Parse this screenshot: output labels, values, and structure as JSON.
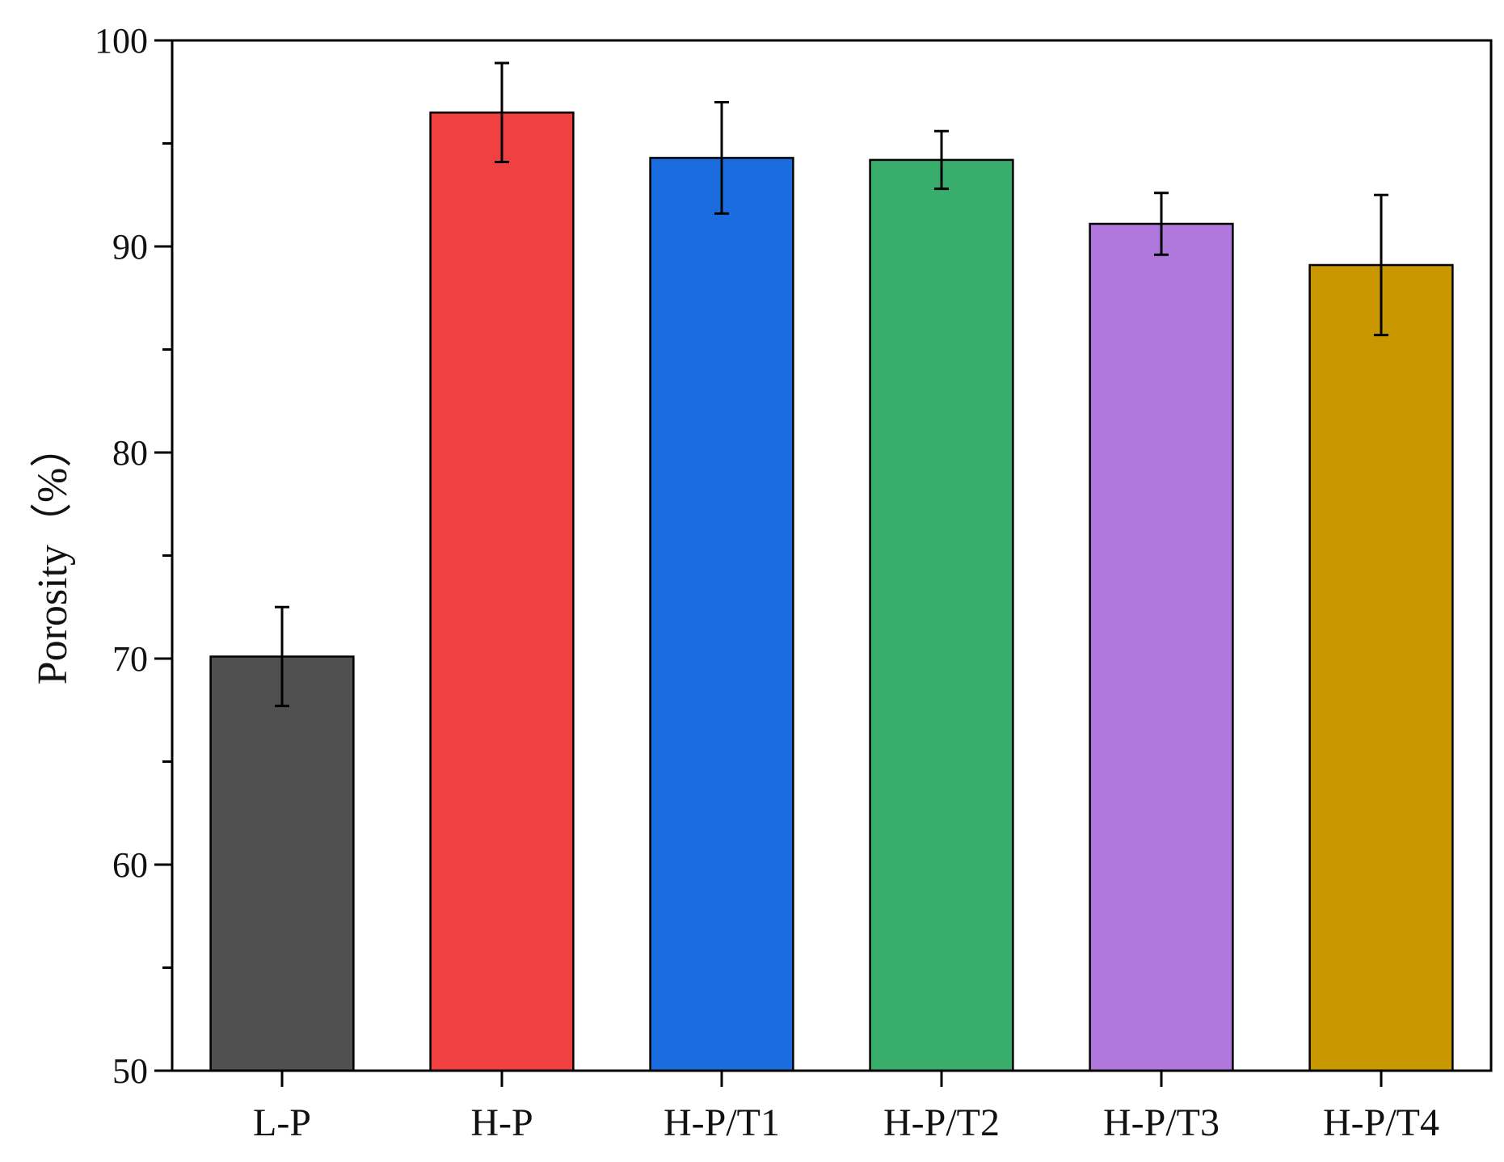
{
  "chart_data": {
    "type": "bar",
    "title": "",
    "xlabel": "",
    "ylabel": "Porosity（%）",
    "ylim": [
      50,
      100
    ],
    "yticks": [
      50,
      60,
      70,
      80,
      90,
      100
    ],
    "ytick_labels": [
      "50",
      "60",
      "70",
      "80",
      "90",
      "100"
    ],
    "minor_yticks": [
      55,
      65,
      75,
      85,
      95
    ],
    "grid": false,
    "categories": [
      "L-P",
      "H-P",
      "H-P/T1",
      "H-P/T2",
      "H-P/T3",
      "H-P/T4"
    ],
    "values": [
      70.1,
      96.5,
      94.3,
      94.2,
      91.1,
      89.1
    ],
    "errors": [
      2.4,
      2.4,
      2.7,
      1.4,
      1.5,
      3.4
    ],
    "colors": [
      "#505050",
      "#f04040",
      "#1b6cde",
      "#38ad6c",
      "#b077dc",
      "#c99800"
    ]
  }
}
